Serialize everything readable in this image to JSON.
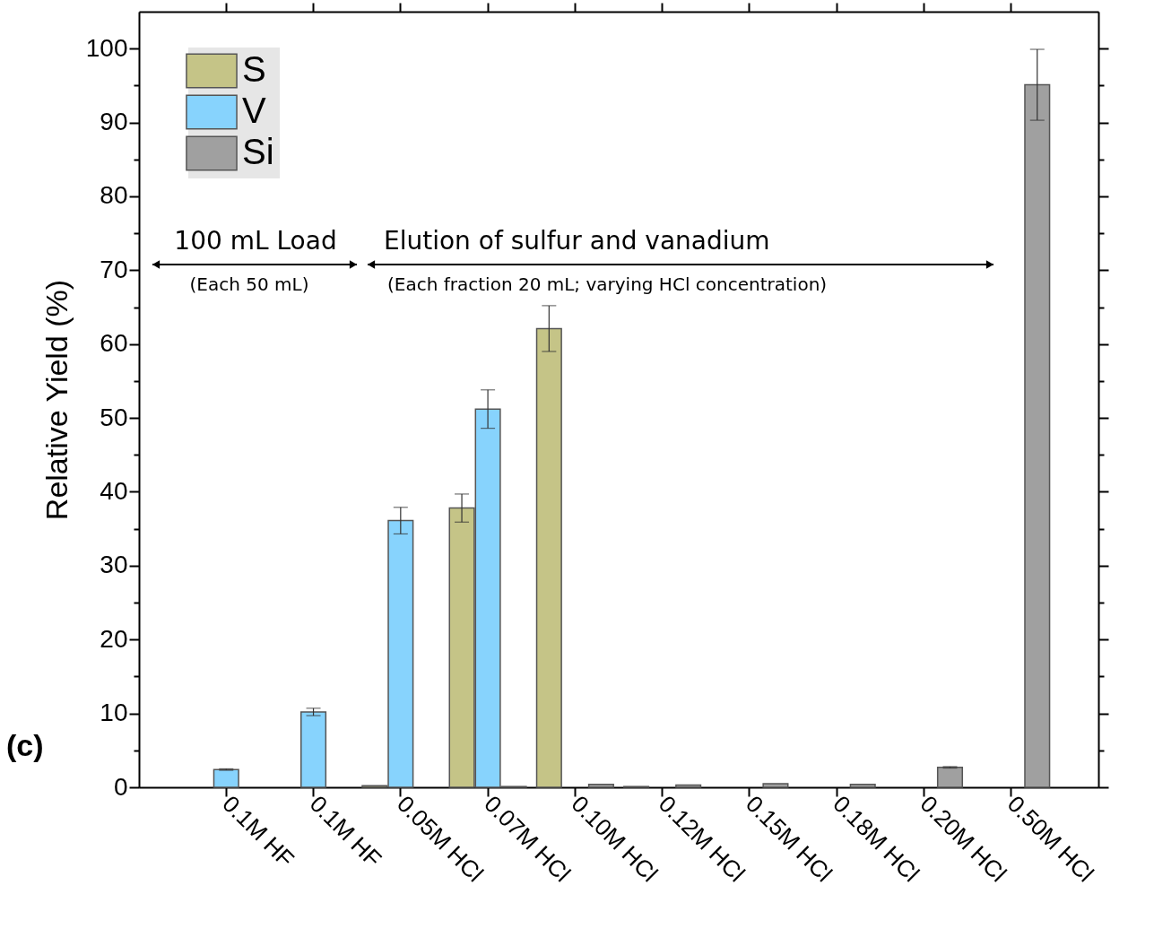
{
  "chart_data": {
    "type": "bar",
    "categories": [
      "0.1M HF",
      "0.1M HF",
      "0.05M HCl",
      "0.07M HCl",
      "0.10M HCl",
      "0.12M HCl",
      "0.15M HCl",
      "0.18M HCl",
      "0.20M HCl",
      "0.50M HCl"
    ],
    "series": [
      {
        "name": "S",
        "color": "#c5c487",
        "values": [
          null,
          null,
          0.2,
          37.8,
          62.1,
          0.1,
          null,
          null,
          null,
          null
        ],
        "errors": [
          null,
          null,
          null,
          1.9,
          3.1,
          null,
          null,
          null,
          null,
          null
        ]
      },
      {
        "name": "V",
        "color": "#87d3fd",
        "values": [
          2.4,
          10.2,
          36.1,
          51.2,
          null,
          null,
          null,
          null,
          null,
          null
        ],
        "errors": [
          0.1,
          0.5,
          1.8,
          2.6,
          null,
          null,
          null,
          null,
          null,
          null
        ]
      },
      {
        "name": "Si",
        "color": "#a0a0a0",
        "values": [
          null,
          null,
          null,
          0.1,
          0.4,
          0.3,
          0.5,
          0.4,
          2.7,
          95.1
        ],
        "errors": [
          null,
          null,
          null,
          null,
          null,
          null,
          null,
          null,
          0.1,
          4.8
        ]
      }
    ],
    "ylabel": "Relative Yield (%)",
    "ylim": [
      0,
      105
    ],
    "yticks": [
      0,
      {
        "value": 5,
        "label": null
      },
      10,
      {
        "value": 15,
        "label": null
      },
      20,
      {
        "value": 25,
        "label": null
      },
      30,
      {
        "value": 35,
        "label": null
      },
      40,
      {
        "value": 45,
        "label": null
      },
      50,
      {
        "value": 55,
        "label": null
      },
      60,
      {
        "value": 65,
        "label": null
      },
      70,
      {
        "value": 75,
        "label": null
      },
      80,
      {
        "value": 85,
        "label": null
      },
      90,
      {
        "value": 95,
        "label": null
      },
      100
    ],
    "annotations": [
      "100 mL Load",
      "(Each 50 mL)",
      "Elution of sulfur and vanadium",
      "(Each fraction 20 mL; varying HCl concentration)",
      "(c)"
    ],
    "legend": "top left",
    "grid": false
  }
}
